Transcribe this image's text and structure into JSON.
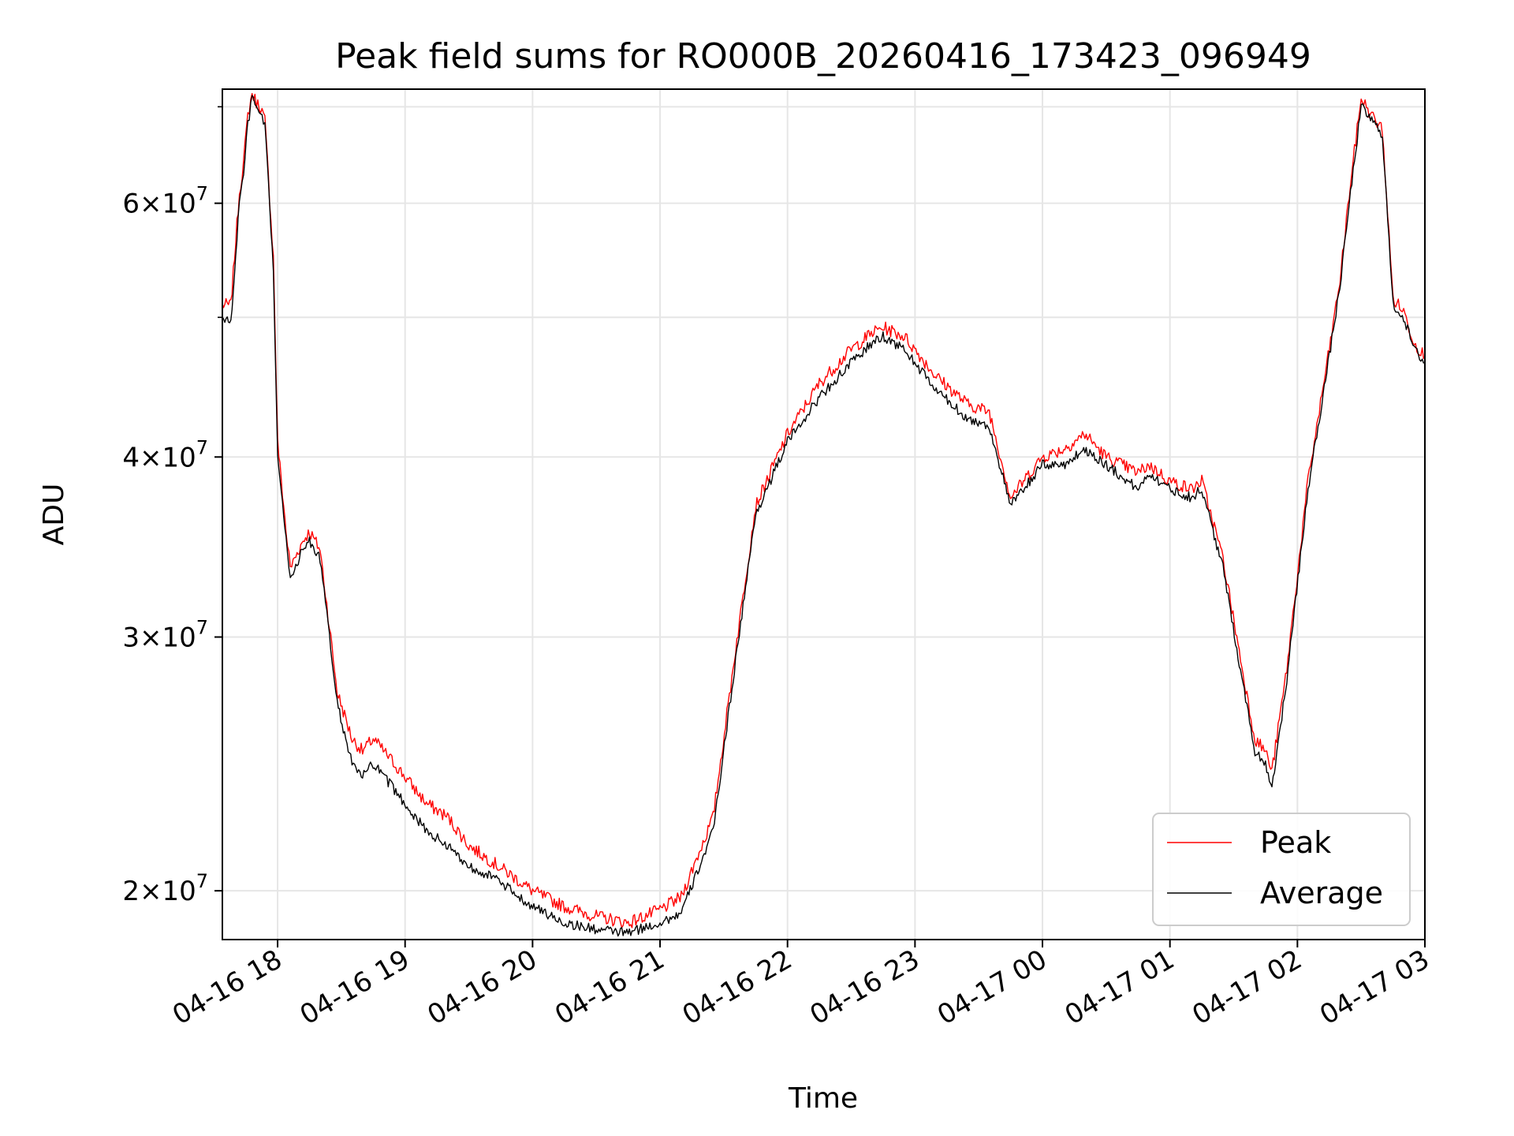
{
  "chart_data": {
    "type": "line",
    "title": "Peak field sums for RO000B_20260416_173423_096949",
    "xlabel": "Time",
    "ylabel": "ADU",
    "yscale": "log",
    "xlim": [
      "04-16 17:34",
      "04-17 03:00"
    ],
    "ylim": [
      18500000,
      72000000
    ],
    "grid": true,
    "legend_position": "lower-right",
    "x_ticks": [
      "04-16 18",
      "04-16 19",
      "04-16 20",
      "04-16 21",
      "04-16 22",
      "04-16 23",
      "04-17 00",
      "04-17 01",
      "04-17 02",
      "04-17 03"
    ],
    "y_ticks_major": [
      {
        "value": 20000000,
        "mant": "2",
        "exp": "7"
      },
      {
        "value": 30000000,
        "mant": "3",
        "exp": "7"
      },
      {
        "value": 40000000,
        "mant": "4",
        "exp": "7"
      },
      {
        "value": 60000000,
        "mant": "6",
        "exp": "7"
      }
    ],
    "y_ticks_minor": [
      50000000,
      70000000
    ],
    "x": [
      "04-16 17:34",
      "04-16 17:38",
      "04-16 17:42",
      "04-16 17:44",
      "04-16 17:46",
      "04-16 17:48",
      "04-16 17:50",
      "04-16 17:52",
      "04-16 17:54",
      "04-16 17:58",
      "04-16 18:00",
      "04-16 18:04",
      "04-16 18:06",
      "04-16 18:08",
      "04-16 18:12",
      "04-16 18:15",
      "04-16 18:20",
      "04-16 18:25",
      "04-16 18:28",
      "04-16 18:35",
      "04-16 18:40",
      "04-16 18:45",
      "04-16 18:55",
      "04-16 19:10",
      "04-16 19:20",
      "04-16 19:30",
      "04-16 19:40",
      "04-16 19:50",
      "04-16 20:00",
      "04-16 20:15",
      "04-16 20:30",
      "04-16 20:45",
      "04-16 21:00",
      "04-16 21:10",
      "04-16 21:25",
      "04-16 21:35",
      "04-16 21:45",
      "04-16 22:00",
      "04-16 22:15",
      "04-16 22:30",
      "04-16 22:40",
      "04-16 22:45",
      "04-16 22:55",
      "04-16 23:10",
      "04-16 23:25",
      "04-16 23:35",
      "04-16 23:45",
      "04-17 00:00",
      "04-17 00:10",
      "04-17 00:20",
      "04-17 00:30",
      "04-17 00:45",
      "04-17 00:50",
      "04-17 01:00",
      "04-17 01:10",
      "04-17 01:15",
      "04-17 01:25",
      "04-17 01:35",
      "04-17 01:40",
      "04-17 01:45",
      "04-17 01:48",
      "04-17 01:55",
      "04-17 02:05",
      "04-17 02:15",
      "04-17 02:20",
      "04-17 02:25",
      "04-17 02:30",
      "04-17 02:35",
      "04-17 02:40",
      "04-17 02:45",
      "04-17 02:50",
      "04-17 02:55",
      "04-17 03:00"
    ],
    "series": [
      {
        "name": "Peak",
        "color": "#ff0000",
        "values": [
          51000000,
          51000000,
          61000000,
          64000000,
          69000000,
          71500000,
          70500000,
          70000000,
          68500000,
          55000000,
          41000000,
          35500000,
          33500000,
          34000000,
          35000000,
          35500000,
          34500000,
          30000000,
          27500000,
          25500000,
          25000000,
          25500000,
          24500000,
          23000000,
          22500000,
          21500000,
          21000000,
          20500000,
          20000000,
          19500000,
          19200000,
          19000000,
          19400000,
          19800000,
          22500000,
          29000000,
          37000000,
          41500000,
          45000000,
          47500000,
          48800000,
          49200000,
          48500000,
          45500000,
          43500000,
          43000000,
          37500000,
          40000000,
          40500000,
          41500000,
          40000000,
          39000000,
          39500000,
          38500000,
          38000000,
          38500000,
          34000000,
          28000000,
          25500000,
          25000000,
          24200000,
          28500000,
          38500000,
          47500000,
          53000000,
          62000000,
          71000000,
          69000000,
          67500000,
          51500000,
          50500000,
          48000000,
          47000000
        ]
      },
      {
        "name": "Average",
        "color": "#000000",
        "values": [
          50000000,
          49500000,
          60000000,
          63000000,
          68000000,
          71000000,
          70000000,
          69000000,
          68000000,
          54000000,
          40000000,
          35000000,
          33000000,
          33500000,
          34500000,
          35000000,
          34000000,
          29500000,
          27000000,
          24500000,
          24000000,
          24500000,
          23500000,
          22000000,
          21500000,
          20800000,
          20500000,
          20000000,
          19500000,
          19000000,
          18800000,
          18700000,
          19000000,
          19300000,
          22000000,
          28500000,
          36500000,
          41000000,
          44000000,
          46500000,
          48000000,
          48500000,
          47500000,
          44500000,
          42500000,
          42000000,
          37000000,
          39500000,
          39500000,
          40500000,
          39500000,
          38000000,
          39000000,
          38000000,
          37500000,
          38000000,
          33500000,
          27500000,
          25000000,
          24500000,
          23600000,
          28000000,
          38000000,
          47000000,
          52500000,
          61000000,
          70000000,
          68500000,
          67000000,
          51000000,
          50000000,
          47500000,
          46500000
        ]
      }
    ]
  }
}
